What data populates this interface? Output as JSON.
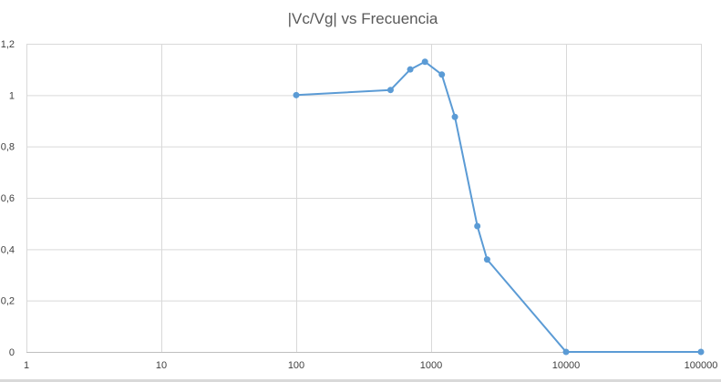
{
  "chart_data": {
    "type": "line",
    "title": "|Vc/Vg| vs Frecuencia",
    "xlabel": "",
    "ylabel": "",
    "x_scale": "log",
    "xlim": [
      1,
      100000
    ],
    "ylim": [
      0,
      1.2
    ],
    "x_ticks": [
      1,
      10,
      100,
      1000,
      10000,
      100000
    ],
    "x_tick_labels": [
      "1",
      "10",
      "100",
      "1000",
      "10000",
      "100000"
    ],
    "y_ticks": [
      0,
      0.2,
      0.4,
      0.6,
      0.8,
      1,
      1.2
    ],
    "y_tick_labels": [
      "0",
      "0,2",
      "0,4",
      "0,6",
      "0,8",
      "1",
      "1,2"
    ],
    "grid": true,
    "legend": "none",
    "series": [
      {
        "color": "#5b9bd5",
        "x": [
          100,
          500,
          700,
          900,
          1200,
          1500,
          2200,
          2600,
          10000,
          100000
        ],
        "y": [
          1.0,
          1.02,
          1.1,
          1.13,
          1.08,
          0.915,
          0.49,
          0.36,
          0.0,
          0.0
        ]
      }
    ]
  }
}
